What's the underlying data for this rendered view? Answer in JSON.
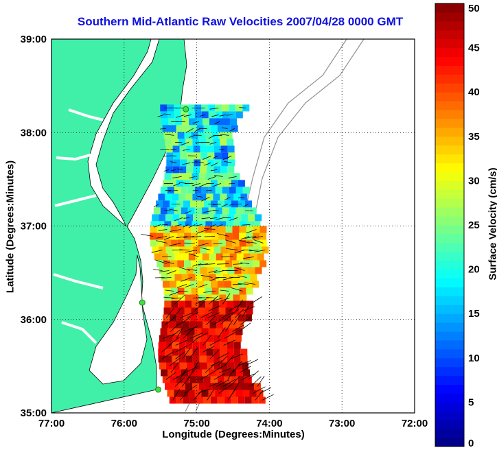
{
  "title": "Southern Mid-Atlantic Raw Velocities 2007/04/28 0000 GMT",
  "x_axis": {
    "label": "Longitude (Degrees:Minutes)",
    "ticks": [
      "77:00",
      "76:00",
      "75:00",
      "74:00",
      "73:00",
      "72:00"
    ],
    "tick_values": [
      -77,
      -76,
      -75,
      -74,
      -73,
      -72
    ]
  },
  "y_axis": {
    "label": "Latitude (Degrees:Minutes)",
    "ticks": [
      "39:00",
      "38:00",
      "37:00",
      "36:00",
      "35:00"
    ],
    "tick_values": [
      39,
      38,
      37,
      36,
      35
    ]
  },
  "colorbar": {
    "label": "Surface Velocity (cm/s)",
    "ticks": [
      "50",
      "45",
      "40",
      "35",
      "30",
      "25",
      "20",
      "15",
      "10",
      "5",
      "0"
    ],
    "min": 0,
    "max": 50,
    "colormap": "jet"
  },
  "colors": {
    "land": "#40f0a8",
    "ocean": "#ffffff",
    "grid": "#000000",
    "bathymetry": "#909090",
    "title": "#1010e0",
    "station": "#40e040"
  },
  "map": {
    "grid": "dotted",
    "extent": {
      "lon": [
        -77,
        -72
      ],
      "lat": [
        35,
        39
      ]
    },
    "stations": [
      {
        "lon": -75.15,
        "lat": 38.25
      },
      {
        "lon": -75.75,
        "lat": 36.18
      },
      {
        "lon": -75.53,
        "lat": 35.25
      }
    ],
    "velocity_field": [
      {
        "region": "north",
        "lat_range": [
          37.0,
          38.3
        ],
        "speed_cm_s": [
          10,
          28
        ],
        "direction": "southwest"
      },
      {
        "region": "middle",
        "lat_range": [
          36.2,
          37.0
        ],
        "speed_cm_s": [
          25,
          40
        ],
        "direction": "west"
      },
      {
        "region": "south",
        "lat_range": [
          35.1,
          36.2
        ],
        "speed_cm_s": [
          40,
          50
        ],
        "direction": "northeast"
      }
    ]
  }
}
